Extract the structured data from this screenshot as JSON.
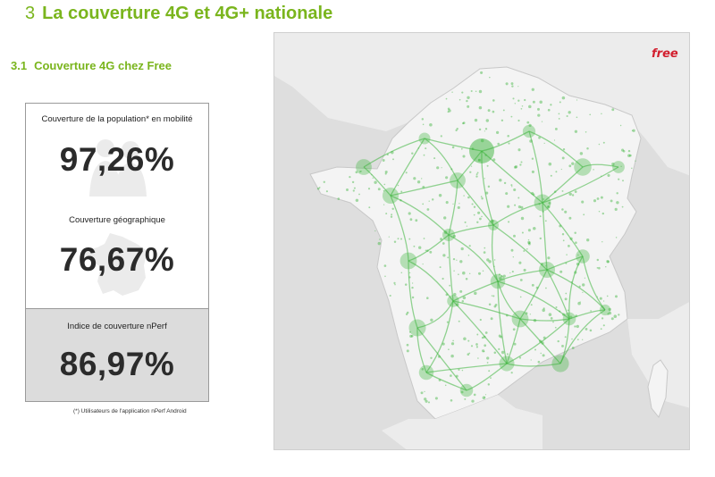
{
  "section": {
    "number": "3",
    "title": "La couverture 4G et 4G+ nationale"
  },
  "subsection": {
    "number": "3.1",
    "title": "Couverture 4G chez Free"
  },
  "stats": [
    {
      "label": "Couverture de la population* en mobilité",
      "value": "97,26%",
      "icon": "population-icon"
    },
    {
      "label": "Couverture géographique",
      "value": "76,67%",
      "icon": "france-map-icon"
    },
    {
      "label": "Indice de couverture nPerf",
      "value": "86,97%",
      "icon": ""
    }
  ],
  "footnote": "(*) Utilisateurs de l'application nPerf Android",
  "map": {
    "brand": "free",
    "brand_color": "#d2202f",
    "coverage_color": "#3cb43c",
    "land_color": "#f1f1f1",
    "sea_color": "#dedede"
  },
  "colors": {
    "accent": "#7ab51d"
  }
}
